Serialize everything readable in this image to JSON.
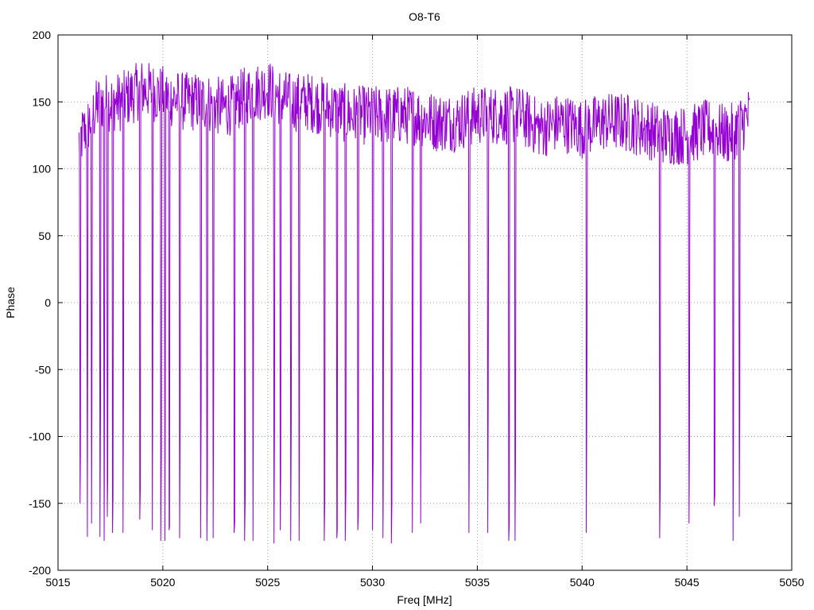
{
  "chart_data": {
    "type": "line",
    "title": "O8-T6",
    "xlabel": "Freq [MHz]",
    "ylabel": "Phase",
    "xlim": [
      5015,
      5050
    ],
    "ylim": [
      -200,
      200
    ],
    "xticks": [
      "5015",
      "5020",
      "5025",
      "5030",
      "5035",
      "5040",
      "5045",
      "5050"
    ],
    "yticks": [
      "200",
      "150",
      "100",
      "50",
      "0",
      "-50",
      "-100",
      "-150",
      "-200"
    ],
    "grid": true,
    "line_color": "#9400d3",
    "series": [
      {
        "x_start": 5016.0,
        "x_end": 5048.0,
        "baseline_points": [
          [
            5016.0,
            120
          ],
          [
            5017.0,
            150
          ],
          [
            5018.0,
            150
          ],
          [
            5019.0,
            160
          ],
          [
            5020.0,
            155
          ],
          [
            5021.0,
            150
          ],
          [
            5022.0,
            150
          ],
          [
            5023.0,
            145
          ],
          [
            5024.0,
            155
          ],
          [
            5025.0,
            160
          ],
          [
            5026.0,
            150
          ],
          [
            5027.0,
            150
          ],
          [
            5028.0,
            145
          ],
          [
            5029.0,
            140
          ],
          [
            5030.0,
            140
          ],
          [
            5031.0,
            140
          ],
          [
            5032.0,
            140
          ],
          [
            5033.0,
            135
          ],
          [
            5034.0,
            135
          ],
          [
            5035.0,
            140
          ],
          [
            5036.0,
            140
          ],
          [
            5037.0,
            140
          ],
          [
            5038.0,
            130
          ],
          [
            5039.0,
            135
          ],
          [
            5040.0,
            130
          ],
          [
            5041.0,
            135
          ],
          [
            5042.0,
            135
          ],
          [
            5043.0,
            130
          ],
          [
            5044.0,
            125
          ],
          [
            5045.0,
            125
          ],
          [
            5046.0,
            130
          ],
          [
            5047.0,
            125
          ],
          [
            5048.0,
            140
          ]
        ],
        "dropouts": [
          [
            5016.05,
            -150
          ],
          [
            5016.4,
            -175
          ],
          [
            5016.6,
            -165
          ],
          [
            5017.0,
            -175
          ],
          [
            5017.2,
            -178
          ],
          [
            5017.35,
            -160
          ],
          [
            5017.6,
            -172
          ],
          [
            5018.1,
            -172
          ],
          [
            5018.9,
            -162
          ],
          [
            5019.5,
            -170
          ],
          [
            5019.9,
            -178
          ],
          [
            5020.1,
            -178
          ],
          [
            5020.3,
            -170
          ],
          [
            5020.8,
            -176
          ],
          [
            5021.8,
            -176
          ],
          [
            5022.1,
            -178
          ],
          [
            5022.4,
            -176
          ],
          [
            5023.4,
            -172
          ],
          [
            5023.9,
            -178
          ],
          [
            5024.3,
            -178
          ],
          [
            5025.3,
            -180
          ],
          [
            5025.6,
            -170
          ],
          [
            5026.1,
            -178
          ],
          [
            5026.5,
            -178
          ],
          [
            5027.7,
            -178
          ],
          [
            5028.3,
            -176
          ],
          [
            5028.7,
            -178
          ],
          [
            5029.3,
            -170
          ],
          [
            5030.0,
            -170
          ],
          [
            5030.5,
            -176
          ],
          [
            5030.9,
            -180
          ],
          [
            5031.9,
            -172
          ],
          [
            5032.3,
            -165
          ],
          [
            5034.6,
            -172
          ],
          [
            5035.5,
            -172
          ],
          [
            5036.5,
            -178
          ],
          [
            5036.8,
            -178
          ],
          [
            5040.2,
            -172
          ],
          [
            5043.7,
            -176
          ],
          [
            5045.1,
            -165
          ],
          [
            5046.3,
            -152
          ],
          [
            5047.2,
            -178
          ],
          [
            5047.5,
            -160
          ]
        ]
      }
    ]
  }
}
